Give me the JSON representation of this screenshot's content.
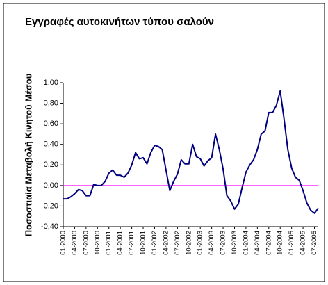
{
  "chart_data": {
    "type": "line",
    "title": "Εγγραφές αυτοκινήτων τύπου σαλούν",
    "y_label": "Ποσοστιαία Μεταβολή Κινητού Μέσου",
    "categories": [
      "01-2000",
      null,
      null,
      "04-2000",
      null,
      null,
      "07-2000",
      null,
      null,
      "10-2000",
      null,
      null,
      "01-2001",
      null,
      null,
      "04-2001",
      null,
      null,
      "07-2001",
      null,
      null,
      "10-2001",
      null,
      null,
      "01-2002",
      null,
      null,
      "04-2002",
      null,
      null,
      "07-2002",
      null,
      null,
      "10-2002",
      null,
      null,
      "01-2003",
      null,
      null,
      "04-2003",
      null,
      null,
      "07-2003",
      null,
      null,
      "10-2003",
      null,
      null,
      "01-2004",
      null,
      null,
      "04-2004",
      null,
      null,
      "07-2004",
      null,
      null,
      "10-2004",
      null,
      null,
      "01-2005",
      null,
      null,
      "04-2005",
      null,
      null,
      "07-2005",
      null
    ],
    "series": [
      {
        "name": "Ποσοστιαία Μεταβολή Κινητού Μέσου",
        "color": "#000080",
        "values": [
          -0.13,
          -0.13,
          -0.11,
          -0.08,
          -0.04,
          -0.05,
          -0.1,
          -0.1,
          0.01,
          0.0,
          0.0,
          0.04,
          0.12,
          0.15,
          0.1,
          0.1,
          0.08,
          0.12,
          0.2,
          0.32,
          0.26,
          0.27,
          0.21,
          0.32,
          0.39,
          0.38,
          0.35,
          0.15,
          -0.05,
          0.04,
          0.11,
          0.25,
          0.21,
          0.21,
          0.4,
          0.28,
          0.26,
          0.19,
          0.24,
          0.27,
          0.5,
          0.35,
          0.16,
          -0.1,
          -0.15,
          -0.23,
          -0.18,
          -0.02,
          0.13,
          0.2,
          0.25,
          0.35,
          0.5,
          0.53,
          0.71,
          0.71,
          0.78,
          0.92,
          0.65,
          0.35,
          0.17,
          0.08,
          0.05,
          -0.05,
          -0.17,
          -0.24,
          -0.27,
          -0.22
        ]
      }
    ],
    "ylim": [
      -0.4,
      1.0
    ],
    "yticks": [
      {
        "value": -0.4,
        "label": "-0,40"
      },
      {
        "value": -0.2,
        "label": "-0,20"
      },
      {
        "value": 0,
        "label": "0,00"
      },
      {
        "value": 0.2,
        "label": "0,20"
      },
      {
        "value": 0.4,
        "label": "0,40"
      },
      {
        "value": 0.6,
        "label": "0,60"
      },
      {
        "value": 0.8,
        "label": "0,80"
      },
      {
        "value": 1.0,
        "label": "1,00"
      }
    ],
    "zero_line_color": "#ff00ff",
    "grid": false
  }
}
